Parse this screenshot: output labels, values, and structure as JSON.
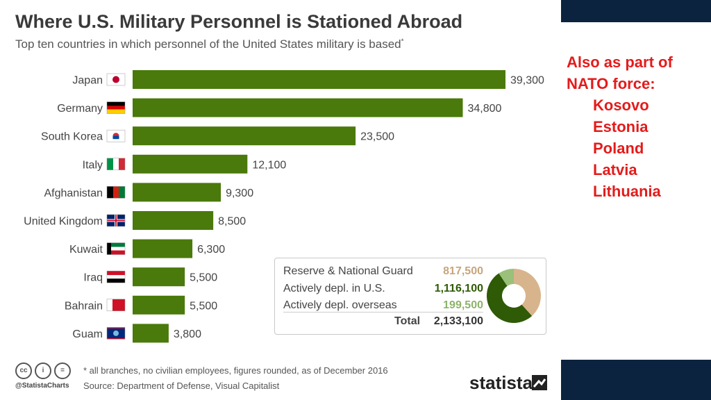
{
  "title": "Where U.S. Military Personnel is Stationed Abroad",
  "subtitle": "Top ten countries in which personnel of the United States military is based",
  "subtitle_mark": "*",
  "colors": {
    "bar": "#4a7a0b",
    "reserve": "#d8b48c",
    "active_us": "#2f5a06",
    "overseas": "#9ac07a"
  },
  "chart_data": [
    {
      "type": "bar",
      "orientation": "horizontal",
      "title": "Where U.S. Military Personnel is Stationed Abroad",
      "categories": [
        "Japan",
        "Germany",
        "South Korea",
        "Italy",
        "Afghanistan",
        "United Kingdom",
        "Kuwait",
        "Iraq",
        "Bahrain",
        "Guam"
      ],
      "values": [
        39300,
        34800,
        23500,
        12100,
        9300,
        8500,
        6300,
        5500,
        5500,
        3800
      ],
      "value_labels": [
        "39,300",
        "34,800",
        "23,500",
        "12,100",
        "9,300",
        "8,500",
        "6,300",
        "5,500",
        "5,500",
        "3,800"
      ],
      "flags": [
        "japan-flag-icon",
        "germany-flag-icon",
        "south-korea-flag-icon",
        "italy-flag-icon",
        "afghanistan-flag-icon",
        "united-kingdom-flag-icon",
        "kuwait-flag-icon",
        "iraq-flag-icon",
        "bahrain-flag-icon",
        "guam-flag-icon"
      ],
      "grid": false
    },
    {
      "type": "pie",
      "donut": true,
      "categories": [
        "Reserve & National Guard",
        "Actively depl. in U.S.",
        "Actively depl. overseas"
      ],
      "values": [
        817500,
        1116100,
        199500
      ],
      "value_labels": [
        "817,500",
        "1,116,100",
        "199,500"
      ],
      "total_label": "Total",
      "total": "2,133,100"
    }
  ],
  "footer": {
    "footnote": "* all branches, no civilian employees, figures rounded, as of December 2016",
    "source": "Source: Department of Defense, Visual Capitalist",
    "handle": "@StatistaCharts",
    "brand": "statista",
    "license_icons": [
      "cc",
      "i",
      "="
    ]
  },
  "nato": {
    "heading": "Also as part of NATO force:",
    "items": [
      "Kosovo",
      "Estonia",
      "Poland",
      "Latvia",
      "Lithuania"
    ]
  }
}
